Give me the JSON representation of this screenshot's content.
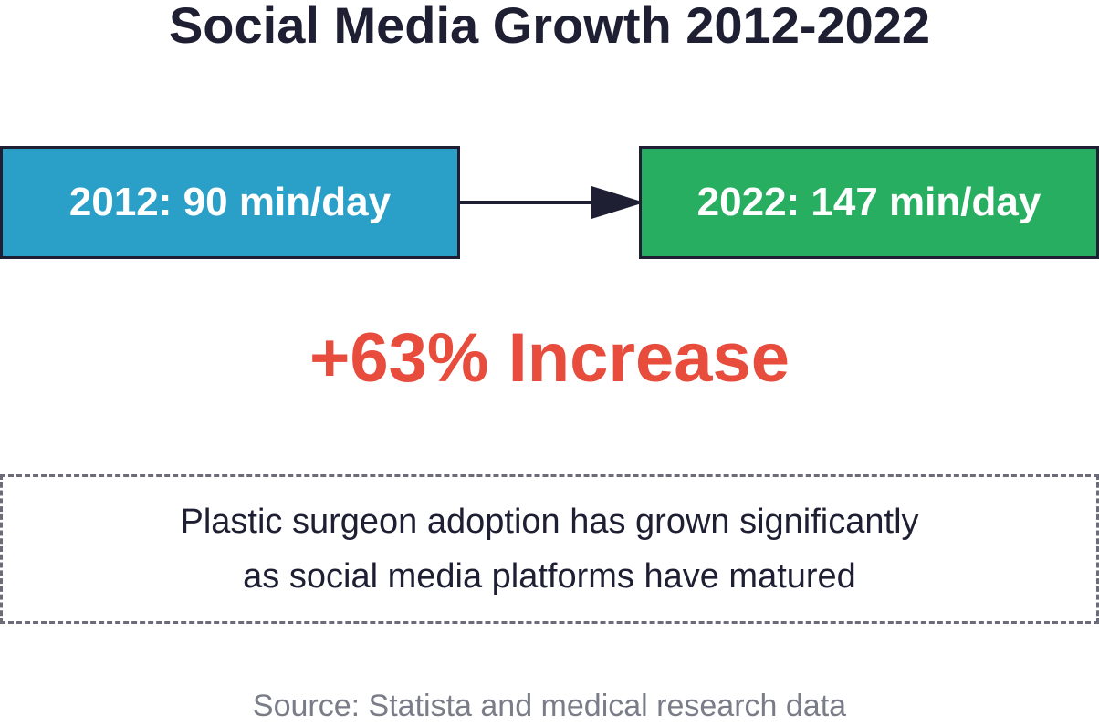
{
  "title": "Social Media Growth 2012-2022",
  "start_box": {
    "label": "2012: 90 min/day",
    "color": "#2a9fc7"
  },
  "end_box": {
    "label": "2022: 147 min/day",
    "color": "#27ae60"
  },
  "increase": {
    "label": "+63% Increase",
    "color": "#e74c3c"
  },
  "note": {
    "lines": [
      "Plastic surgeon adoption has grown significantly",
      "as social media platforms have matured"
    ]
  },
  "source": "Source: Statista and medical research data",
  "colors": {
    "text": "#1e1f33",
    "border": "#1e1f33",
    "dashed_border": "#6c6c78",
    "source_text": "#7a7d88"
  }
}
